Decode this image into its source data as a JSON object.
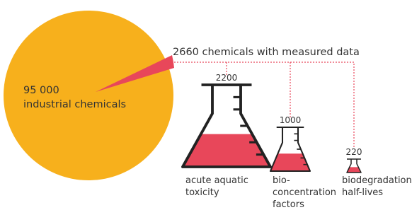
{
  "total": {
    "count": "95 000",
    "label": "industrial chemicals"
  },
  "measured": {
    "label": "2660 chemicals with measured data"
  },
  "flasks": [
    {
      "count": "2200",
      "label_lines": [
        "acute aquatic",
        "toxicity"
      ]
    },
    {
      "count": "1000",
      "label_lines": [
        "bio-",
        "concentration",
        "factors"
      ]
    },
    {
      "count": "220",
      "label_lines": [
        "biodegradation",
        "half-lives"
      ]
    }
  ]
}
